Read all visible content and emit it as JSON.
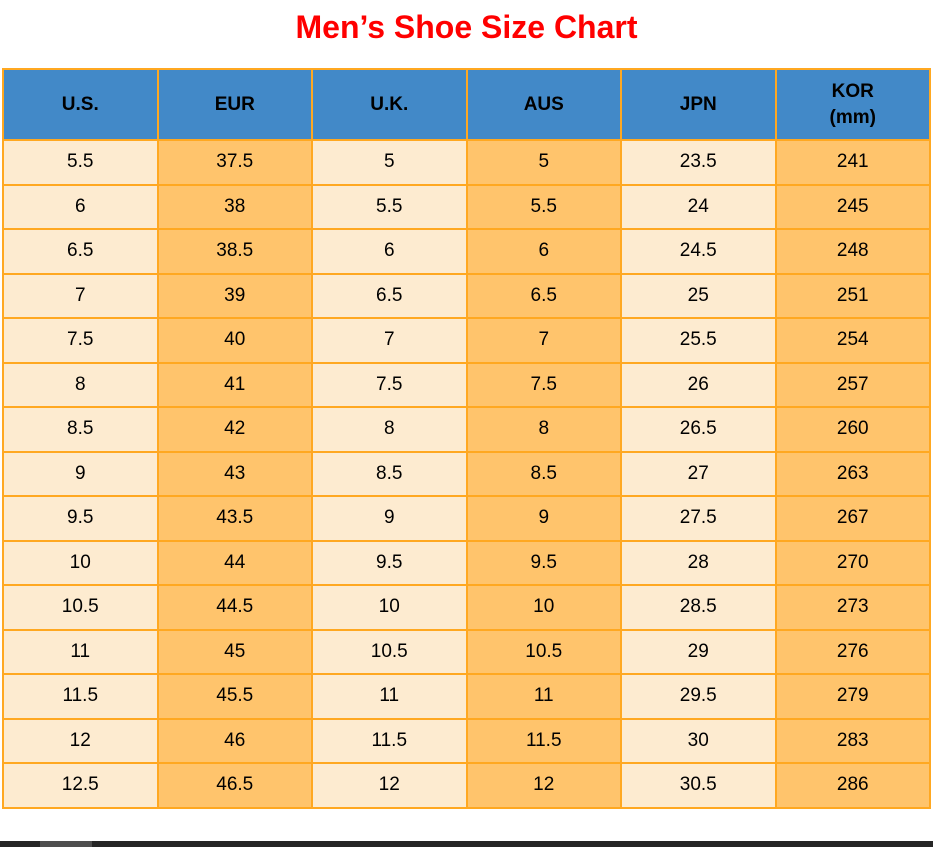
{
  "chart_data": {
    "type": "table",
    "title": "Men’s Shoe Size Chart",
    "columns": [
      "U.S.",
      "EUR",
      "U.K.",
      "AUS",
      "JPN",
      "KOR (mm)"
    ],
    "rows": [
      [
        "5.5",
        "37.5",
        "5",
        "5",
        "23.5",
        "241"
      ],
      [
        "6",
        "38",
        "5.5",
        "5.5",
        "24",
        "245"
      ],
      [
        "6.5",
        "38.5",
        "6",
        "6",
        "24.5",
        "248"
      ],
      [
        "7",
        "39",
        "6.5",
        "6.5",
        "25",
        "251"
      ],
      [
        "7.5",
        "40",
        "7",
        "7",
        "25.5",
        "254"
      ],
      [
        "8",
        "41",
        "7.5",
        "7.5",
        "26",
        "257"
      ],
      [
        "8.5",
        "42",
        "8",
        "8",
        "26.5",
        "260"
      ],
      [
        "9",
        "43",
        "8.5",
        "8.5",
        "27",
        "263"
      ],
      [
        "9.5",
        "43.5",
        "9",
        "9",
        "27.5",
        "267"
      ],
      [
        "10",
        "44",
        "9.5",
        "9.5",
        "28",
        "270"
      ],
      [
        "10.5",
        "44.5",
        "10",
        "10",
        "28.5",
        "273"
      ],
      [
        "11",
        "45",
        "10.5",
        "10.5",
        "29",
        "276"
      ],
      [
        "11.5",
        "45.5",
        "11",
        "11",
        "29.5",
        "279"
      ],
      [
        "12",
        "46",
        "11.5",
        "11.5",
        "30",
        "283"
      ],
      [
        "12.5",
        "46.5",
        "12",
        "12",
        "30.5",
        "286"
      ]
    ],
    "layout": {
      "header_position": "top",
      "grid": true,
      "column_fill_alternation": [
        "light",
        "orange",
        "light",
        "orange",
        "light",
        "orange"
      ]
    }
  },
  "table": {
    "headers": [
      {
        "label": "U.S.",
        "sub": ""
      },
      {
        "label": "EUR",
        "sub": ""
      },
      {
        "label": "U.K.",
        "sub": ""
      },
      {
        "label": "AUS",
        "sub": ""
      },
      {
        "label": "JPN",
        "sub": ""
      },
      {
        "label": "KOR",
        "sub": "(mm)"
      }
    ]
  },
  "colors": {
    "title": "#FF0000",
    "header_bg": "#4289C8",
    "border": "#FFA821",
    "cell_light": "#FDEBD0",
    "cell_orange": "#FFC46C",
    "text": "#000000",
    "scrollbar_track": "#262626",
    "scrollbar_thumb": "#4E4E4E"
  },
  "scrollbar": {
    "orientation": "horizontal",
    "thumb_position": "left"
  }
}
